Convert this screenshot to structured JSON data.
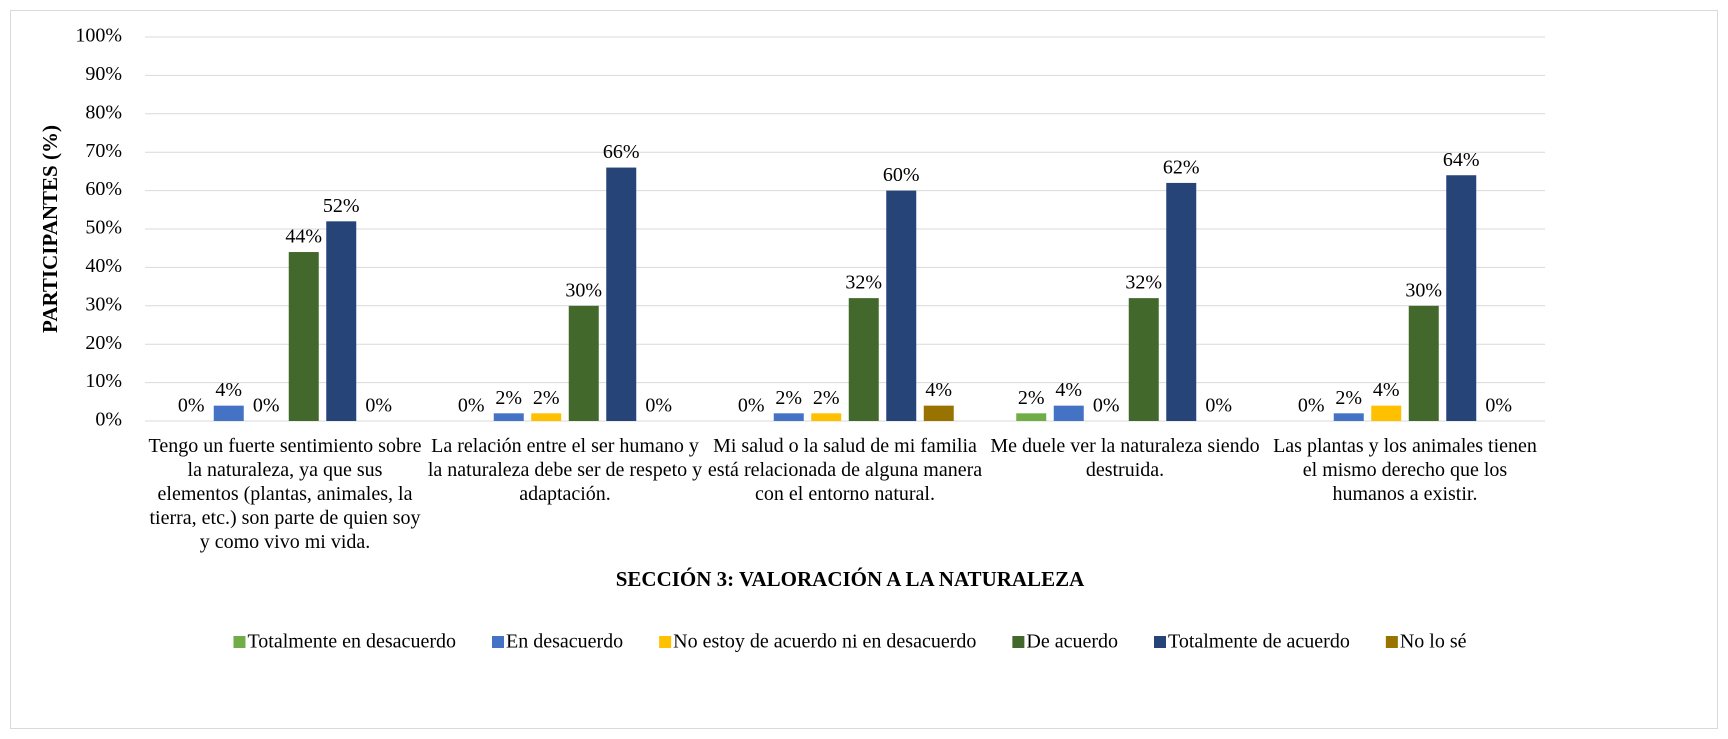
{
  "chart_data": {
    "type": "bar",
    "x_label": "SECCIÓN 3: VALORACIÓN A LA NATURALEZA",
    "y_label": "PARTICIPANTES (%)",
    "categories": [
      "Tengo un fuerte sentimiento sobre la naturaleza, ya que sus elementos (plantas, animales, la tierra, etc.) son parte de quien soy y como vivo mi vida.",
      "La relación entre el ser humano y la naturaleza debe ser de respeto y adaptación.",
      "Mi salud o la salud de mi familia está relacionada de alguna manera con el entorno natural.",
      "Me duele ver la naturaleza siendo destruida.",
      "Las plantas y los animales tienen el mismo derecho que los humanos a existir."
    ],
    "series": [
      {
        "name": "Totalmente en desacuerdo",
        "color": "#70ad47",
        "values": [
          0,
          0,
          0,
          2,
          0
        ],
        "value_labels": [
          "0%",
          "0%",
          "0%",
          "2%",
          "0%"
        ]
      },
      {
        "name": "En desacuerdo",
        "color": "#4472c4",
        "values": [
          4,
          2,
          2,
          4,
          2
        ],
        "value_labels": [
          "4%",
          "2%",
          "2%",
          "4%",
          "2%"
        ]
      },
      {
        "name": "No estoy de acuerdo ni en desacuerdo",
        "color": "#ffc000",
        "values": [
          0,
          2,
          2,
          0,
          4
        ],
        "value_labels": [
          "0%",
          "2%",
          "2%",
          "0%",
          "4%"
        ]
      },
      {
        "name": "De acuerdo",
        "color": "#43682b",
        "values": [
          44,
          30,
          32,
          32,
          30
        ],
        "value_labels": [
          "44%",
          "30%",
          "32%",
          "32%",
          "30%"
        ]
      },
      {
        "name": "Totalmente de acuerdo",
        "color": "#264478",
        "values": [
          52,
          66,
          60,
          62,
          64
        ],
        "value_labels": [
          "52%",
          "66%",
          "60%",
          "62%",
          "64%"
        ]
      },
      {
        "name": "No lo sé",
        "color": "#997300",
        "values": [
          0,
          0,
          4,
          0,
          0
        ],
        "value_labels": [
          "0%",
          "0%",
          "4%",
          "0%",
          "0%"
        ]
      }
    ],
    "ylim": [
      0,
      100
    ],
    "yticks": [
      {
        "value": 0,
        "label": "0%"
      },
      {
        "value": 10,
        "label": "10%"
      },
      {
        "value": 20,
        "label": "20%"
      },
      {
        "value": 30,
        "label": "30%"
      },
      {
        "value": 40,
        "label": "40%"
      },
      {
        "value": 50,
        "label": "50%"
      },
      {
        "value": 60,
        "label": "60%"
      },
      {
        "value": 70,
        "label": "70%"
      },
      {
        "value": 80,
        "label": "80%"
      },
      {
        "value": 90,
        "label": "90%"
      },
      {
        "value": 100,
        "label": "100%"
      }
    ],
    "grid": true,
    "legend": "bottom"
  }
}
